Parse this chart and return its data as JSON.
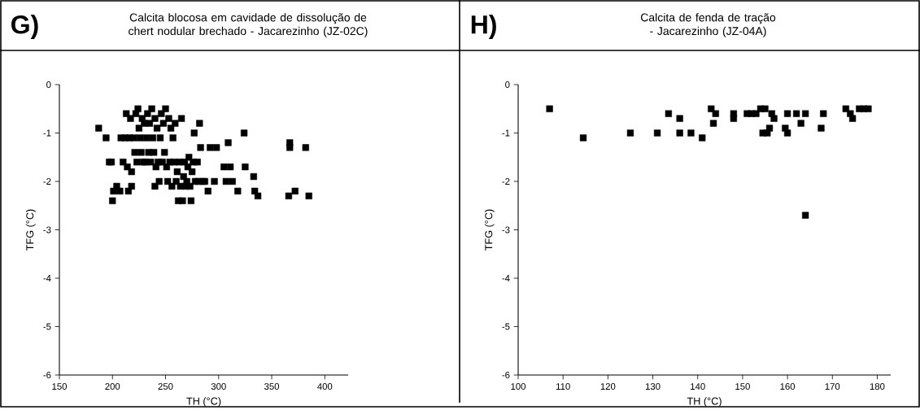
{
  "chart_data": [
    {
      "type": "scatter",
      "title": "Calcita blocosa em cavidade de dissolução de chert nodular brechado - Jacarezinho (JZ-02C)",
      "annotations": [
        "G)"
      ],
      "xlabel": "TH (°C)",
      "ylabel": "TFG (°C)",
      "xlim": [
        150,
        422
      ],
      "ylim": [
        -6,
        0
      ],
      "xticks": [
        150,
        200,
        250,
        300,
        350,
        400
      ],
      "yticks": [
        -6,
        -5,
        -4,
        -3,
        -2,
        -1,
        0
      ],
      "marker": "square",
      "grid": false,
      "series": [
        {
          "color": "#000000",
          "x": [
            187,
            194,
            197,
            199,
            200,
            201,
            204,
            207,
            208,
            210,
            212,
            213,
            214,
            215,
            216,
            217,
            218,
            218,
            220,
            221,
            222,
            223,
            224,
            225,
            226,
            227,
            228,
            229,
            230,
            231,
            232,
            233,
            234,
            235,
            236,
            237,
            238,
            239,
            240,
            240,
            241,
            242,
            243,
            244,
            245,
            246,
            247,
            248,
            249,
            250,
            251,
            252,
            253,
            254,
            255,
            256,
            257,
            258,
            259,
            260,
            261,
            262,
            263,
            264,
            265,
            266,
            267,
            268,
            269,
            270,
            271,
            272,
            273,
            274,
            275,
            276,
            277,
            278,
            280,
            281,
            282,
            283,
            285,
            287,
            290,
            292,
            296,
            298,
            305,
            307,
            309,
            311,
            313,
            318,
            324,
            325,
            333,
            334,
            337,
            366,
            367,
            367,
            372,
            382,
            385
          ],
          "values": [
            -0.9,
            -1.1,
            -1.6,
            -1.6,
            -2.4,
            -2.2,
            -2.1,
            -2.2,
            -1.1,
            -1.6,
            -1.1,
            -0.6,
            -1.7,
            -2.2,
            -1.1,
            -0.7,
            -2.1,
            -1.8,
            -1.1,
            -1.4,
            -0.6,
            -1.6,
            -0.5,
            -0.9,
            -1.1,
            -1.4,
            -0.7,
            -1.6,
            -0.8,
            -1.6,
            -1.1,
            -0.6,
            -1.4,
            -0.8,
            -1.6,
            -0.5,
            -1.1,
            -1.4,
            -2.1,
            -0.7,
            -1.7,
            -0.9,
            -1.6,
            -2.0,
            -1.1,
            -0.6,
            -1.6,
            -0.8,
            -1.4,
            -0.5,
            -1.7,
            -2.0,
            -0.7,
            -1.6,
            -0.9,
            -2.1,
            -1.1,
            -1.6,
            -0.8,
            -2.0,
            -1.8,
            -2.4,
            -1.6,
            -2.1,
            -0.7,
            -2.4,
            -1.9,
            -1.6,
            -2.1,
            -2.0,
            -1.7,
            -1.5,
            -2.1,
            -2.4,
            -1.8,
            -1.6,
            -1.0,
            -2.0,
            -1.6,
            -2.0,
            -0.8,
            -1.3,
            -2.0,
            -2.0,
            -2.2,
            -1.3,
            -2.0,
            -1.3,
            -1.7,
            -2.0,
            -1.2,
            -1.7,
            -2.0,
            -2.2,
            -1.0,
            -1.7,
            -1.9,
            -2.2,
            -2.3,
            -2.3,
            -1.2,
            -1.3,
            -2.2,
            -1.3,
            -2.3
          ]
        }
      ]
    },
    {
      "type": "scatter",
      "title": "Calcita de fenda de tração - Jacarezinho (JZ-04A)",
      "annotations": [
        "H)"
      ],
      "xlabel": "TH (°C)",
      "ylabel": "TFG (°C)",
      "xlim": [
        100,
        183
      ],
      "ylim": [
        -6,
        0
      ],
      "xticks": [
        100,
        110,
        120,
        130,
        140,
        150,
        160,
        170,
        180
      ],
      "yticks": [
        -6,
        -5,
        -4,
        -3,
        -2,
        -1,
        0
      ],
      "marker": "square",
      "grid": false,
      "series": [
        {
          "color": "#000000",
          "x": [
            107,
            114.5,
            125,
            131,
            133.5,
            136,
            136,
            138.5,
            141,
            143,
            143.5,
            144,
            148,
            148,
            151,
            152,
            153,
            154,
            154.5,
            155,
            155.5,
            156,
            156.5,
            157,
            159.5,
            160,
            160,
            162,
            163,
            164,
            164,
            167.5,
            168,
            173,
            174,
            174.5,
            176,
            177,
            178
          ],
          "values": [
            -0.5,
            -1.1,
            -1.0,
            -1.0,
            -0.6,
            -0.7,
            -1.0,
            -1.0,
            -1.1,
            -0.5,
            -0.8,
            -0.6,
            -0.6,
            -0.7,
            -0.6,
            -0.6,
            -0.6,
            -0.5,
            -1.0,
            -0.5,
            -1.0,
            -0.9,
            -0.6,
            -0.7,
            -0.9,
            -0.6,
            -1.0,
            -0.6,
            -0.8,
            -0.6,
            -2.7,
            -0.9,
            -0.6,
            -0.5,
            -0.6,
            -0.7,
            -0.5,
            -0.5,
            -0.5
          ]
        }
      ]
    }
  ]
}
